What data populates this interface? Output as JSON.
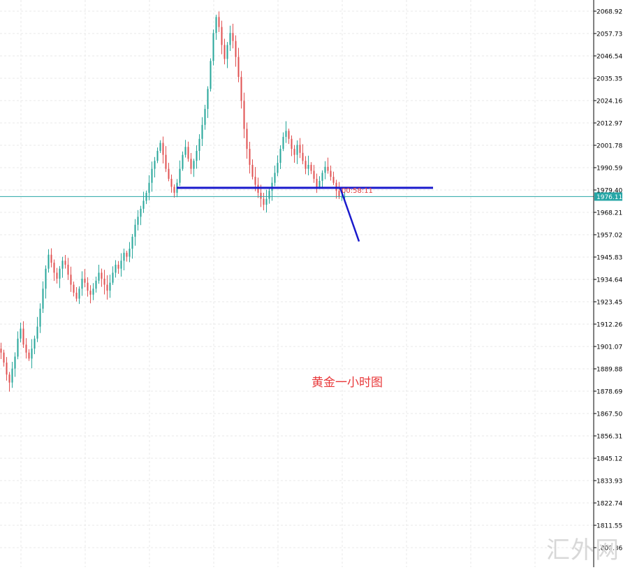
{
  "chart_data": {
    "type": "candlestick",
    "title": "黄金一小时图",
    "ylim": [
      1795,
      2074
    ],
    "y_ticks": [
      2068.92,
      2057.73,
      2046.54,
      2035.35,
      2024.16,
      2012.97,
      2001.78,
      1990.59,
      1979.4,
      1968.21,
      1957.02,
      1945.83,
      1934.64,
      1923.45,
      1912.26,
      1901.07,
      1889.88,
      1878.69,
      1867.5,
      1856.31,
      1845.12,
      1833.93,
      1822.74,
      1811.55,
      1800.36
    ],
    "current_price": 1976.11,
    "current_price_label": "1976.11",
    "countdown_label": "00:58:11",
    "bullish_color": "#26a69a",
    "bearish_color": "#e05050",
    "price_line_color": "#26a6a6",
    "drawing_color": "#1a1acc",
    "close_path": [
      1898,
      1893,
      1887,
      1883,
      1890,
      1896,
      1905,
      1910,
      1902,
      1898,
      1895,
      1900,
      1905,
      1911,
      1920,
      1930,
      1940,
      1947,
      1943,
      1938,
      1935,
      1940,
      1944,
      1942,
      1937,
      1932,
      1928,
      1925,
      1930,
      1935,
      1933,
      1929,
      1927,
      1930,
      1934,
      1938,
      1935,
      1932,
      1929,
      1933,
      1938,
      1942,
      1940,
      1944,
      1948,
      1946,
      1950,
      1956,
      1962,
      1966,
      1970,
      1974,
      1978,
      1983,
      1990,
      1994,
      1999,
      2003,
      1997,
      1990,
      1985,
      1981,
      1978,
      1983,
      1990,
      1997,
      2001,
      1995,
      1990,
      1994,
      1999,
      2005,
      2012,
      2020,
      2030,
      2044,
      2058,
      2066,
      2061,
      2052,
      2045,
      2052,
      2058,
      2054,
      2046,
      2036,
      2024,
      2010,
      2000,
      1992,
      1986,
      1982,
      1978,
      1975,
      1972,
      1975,
      1979,
      1983,
      1988,
      1993,
      2000,
      2006,
      2009,
      2005,
      2000,
      1997,
      2002,
      1998,
      1994,
      1990,
      1992,
      1989,
      1985,
      1981,
      1984,
      1988,
      1991,
      1989,
      1986,
      1983,
      1979,
      1976,
      1976,
      1976.11
    ],
    "horizontal_level": 1980.5,
    "projection": [
      [
        1980.5,
        0
      ],
      [
        1957.5,
        10
      ]
    ]
  }
}
